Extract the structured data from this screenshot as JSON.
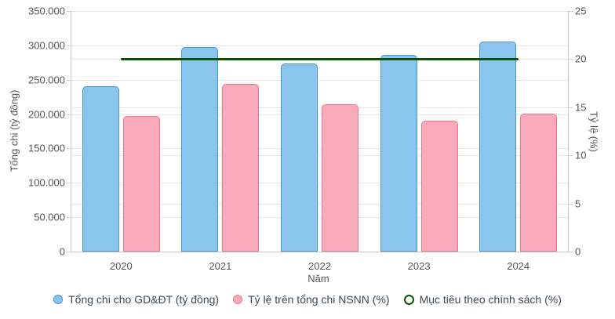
{
  "chart_data": {
    "type": "bar",
    "title": "",
    "xlabel": "Năm",
    "ylabel_left": "Tổng chi (tỷ đồng)",
    "ylabel_right": "Tỷ lệ (%)",
    "categories": [
      "2020",
      "2021",
      "2022",
      "2023",
      "2024"
    ],
    "ylim_left": [
      0,
      350000
    ],
    "ylim_right": [
      0,
      25
    ],
    "yticks_left": [
      {
        "value": 0,
        "label": "0"
      },
      {
        "value": 50000,
        "label": "50.000"
      },
      {
        "value": 100000,
        "label": "100.000"
      },
      {
        "value": 150000,
        "label": "150.000"
      },
      {
        "value": 200000,
        "label": "200.000"
      },
      {
        "value": 250000,
        "label": "250.000"
      },
      {
        "value": 300000,
        "label": "300.000"
      },
      {
        "value": 350000,
        "label": "350.000"
      }
    ],
    "yticks_right": [
      {
        "value": 0,
        "label": "0"
      },
      {
        "value": 5,
        "label": "5"
      },
      {
        "value": 10,
        "label": "10"
      },
      {
        "value": 15,
        "label": "15"
      },
      {
        "value": 20,
        "label": "20"
      },
      {
        "value": 25,
        "label": "25"
      }
    ],
    "grid": true,
    "legend_position": "bottom",
    "series": [
      {
        "id": "tong-chi",
        "name": "Tổng chi cho GD&ĐT (tỷ đồng)",
        "type": "bar",
        "axis": "left",
        "fill": "#89C4ED",
        "stroke": "#4E96CE",
        "values": [
          240000,
          298000,
          274000,
          286000,
          305000
        ]
      },
      {
        "id": "ty-le",
        "name": "Tỷ lệ trên tổng chi NSNN (%)",
        "type": "bar",
        "axis": "right",
        "fill": "#F9A9BA",
        "stroke": "#EC7793",
        "values": [
          14.1,
          17.4,
          15.3,
          13.6,
          14.3
        ]
      },
      {
        "id": "muc-tieu",
        "name": "Mục tiêu theo chính sách (%)",
        "type": "line",
        "axis": "right",
        "stroke": "#0A520A",
        "values": [
          20,
          20,
          20,
          20,
          20
        ]
      }
    ]
  }
}
